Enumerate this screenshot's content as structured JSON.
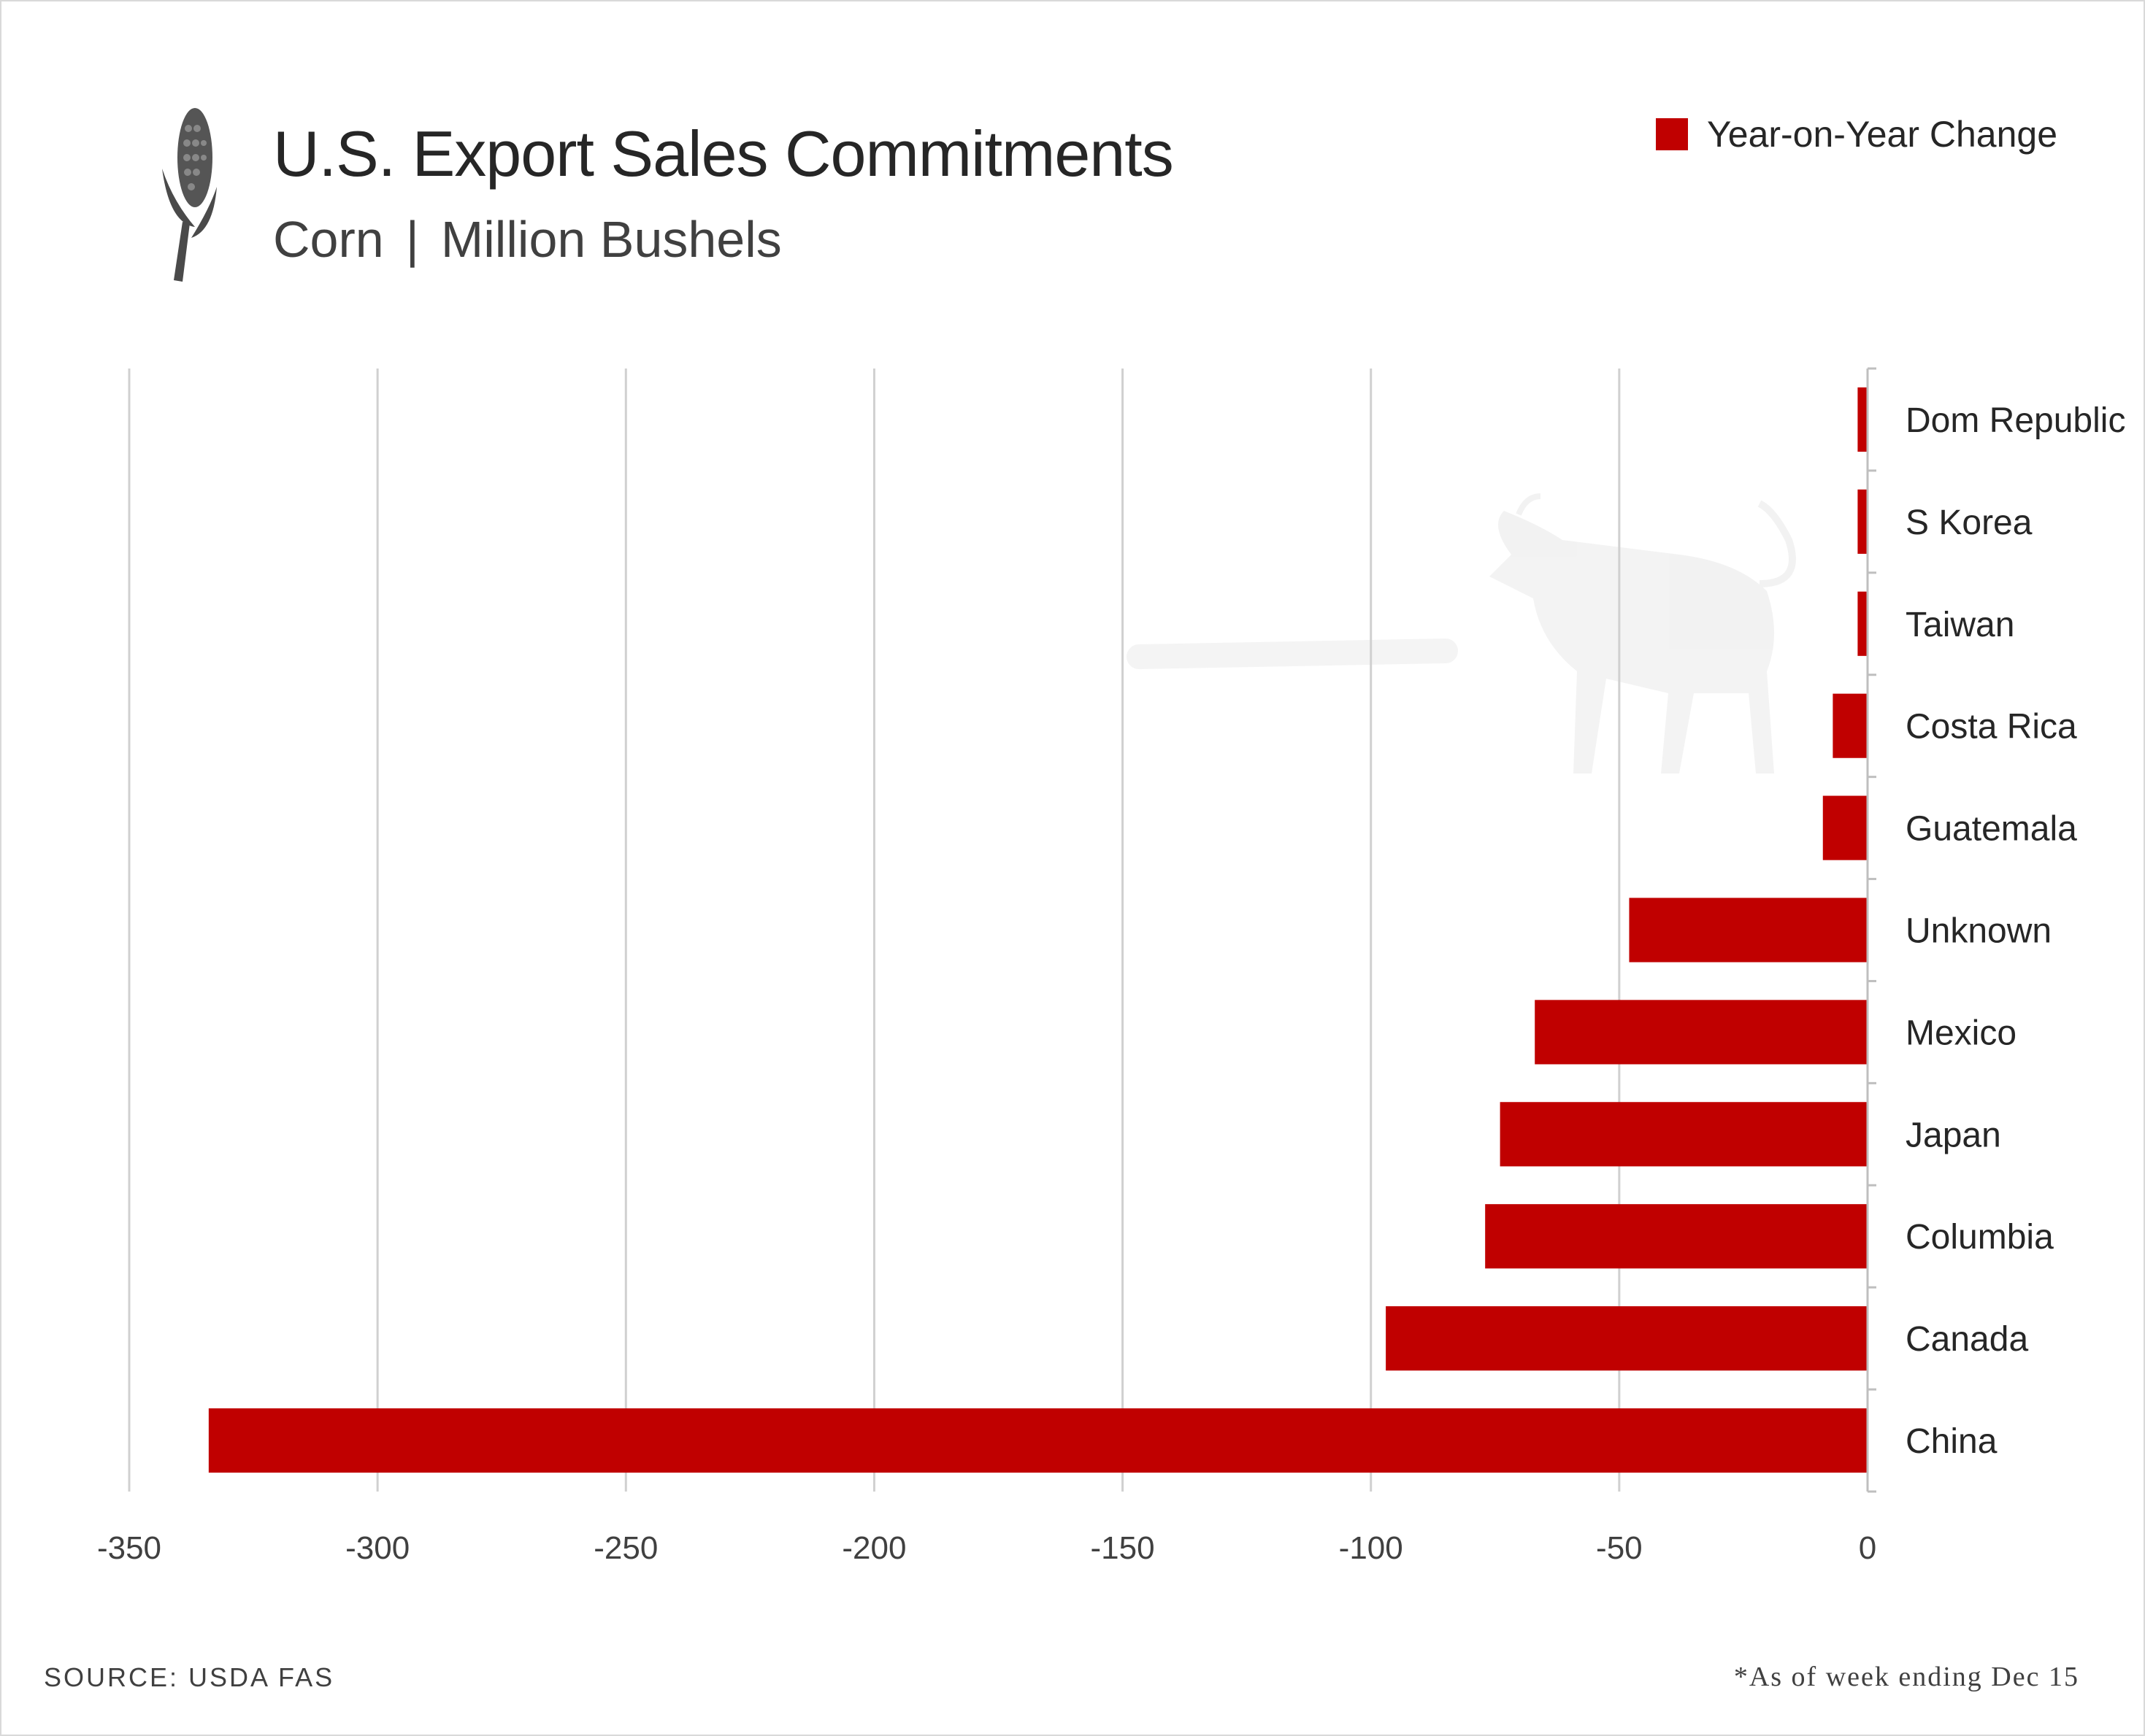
{
  "header": {
    "title": "U.S. Export Sales Commitments",
    "subtitle_commodity": "Corn",
    "subtitle_separator": "|",
    "subtitle_unit": "Million Bushels",
    "icon": "corn-icon"
  },
  "watermark": {
    "icon": "bull-icon"
  },
  "footer": {
    "source": "SOURCE: USDA FAS",
    "note": "*As of week ending Dec 15"
  },
  "colors": {
    "bar": "#c00000",
    "grid": "#d0d0d0",
    "text": "#262626"
  },
  "chart_data": {
    "type": "bar",
    "orientation": "horizontal",
    "title": "U.S. Export Sales Commitments",
    "subtitle": "Corn | Million Bushels",
    "categories": [
      "Dom Republic",
      "S Korea",
      "Taiwan",
      "Costa Rica",
      "Guatemala",
      "Unknown",
      "Mexico",
      "Japan",
      "Columbia",
      "Canada",
      "China"
    ],
    "series": [
      {
        "name": "Year-on-Year Change",
        "values": [
          -2,
          -2,
          -2,
          -7,
          -9,
          -48,
          -67,
          -74,
          -77,
          -97,
          -334
        ]
      }
    ],
    "xlim": [
      -350,
      0
    ],
    "xticks": [
      -350,
      -300,
      -250,
      -200,
      -150,
      -100,
      -50,
      0
    ],
    "xtick_labels": [
      "-350",
      "-300",
      "-250",
      "-200",
      "-150",
      "-100",
      "-50",
      "0"
    ],
    "grid": "vertical",
    "legend": "top-right",
    "category_axis_side": "right"
  }
}
